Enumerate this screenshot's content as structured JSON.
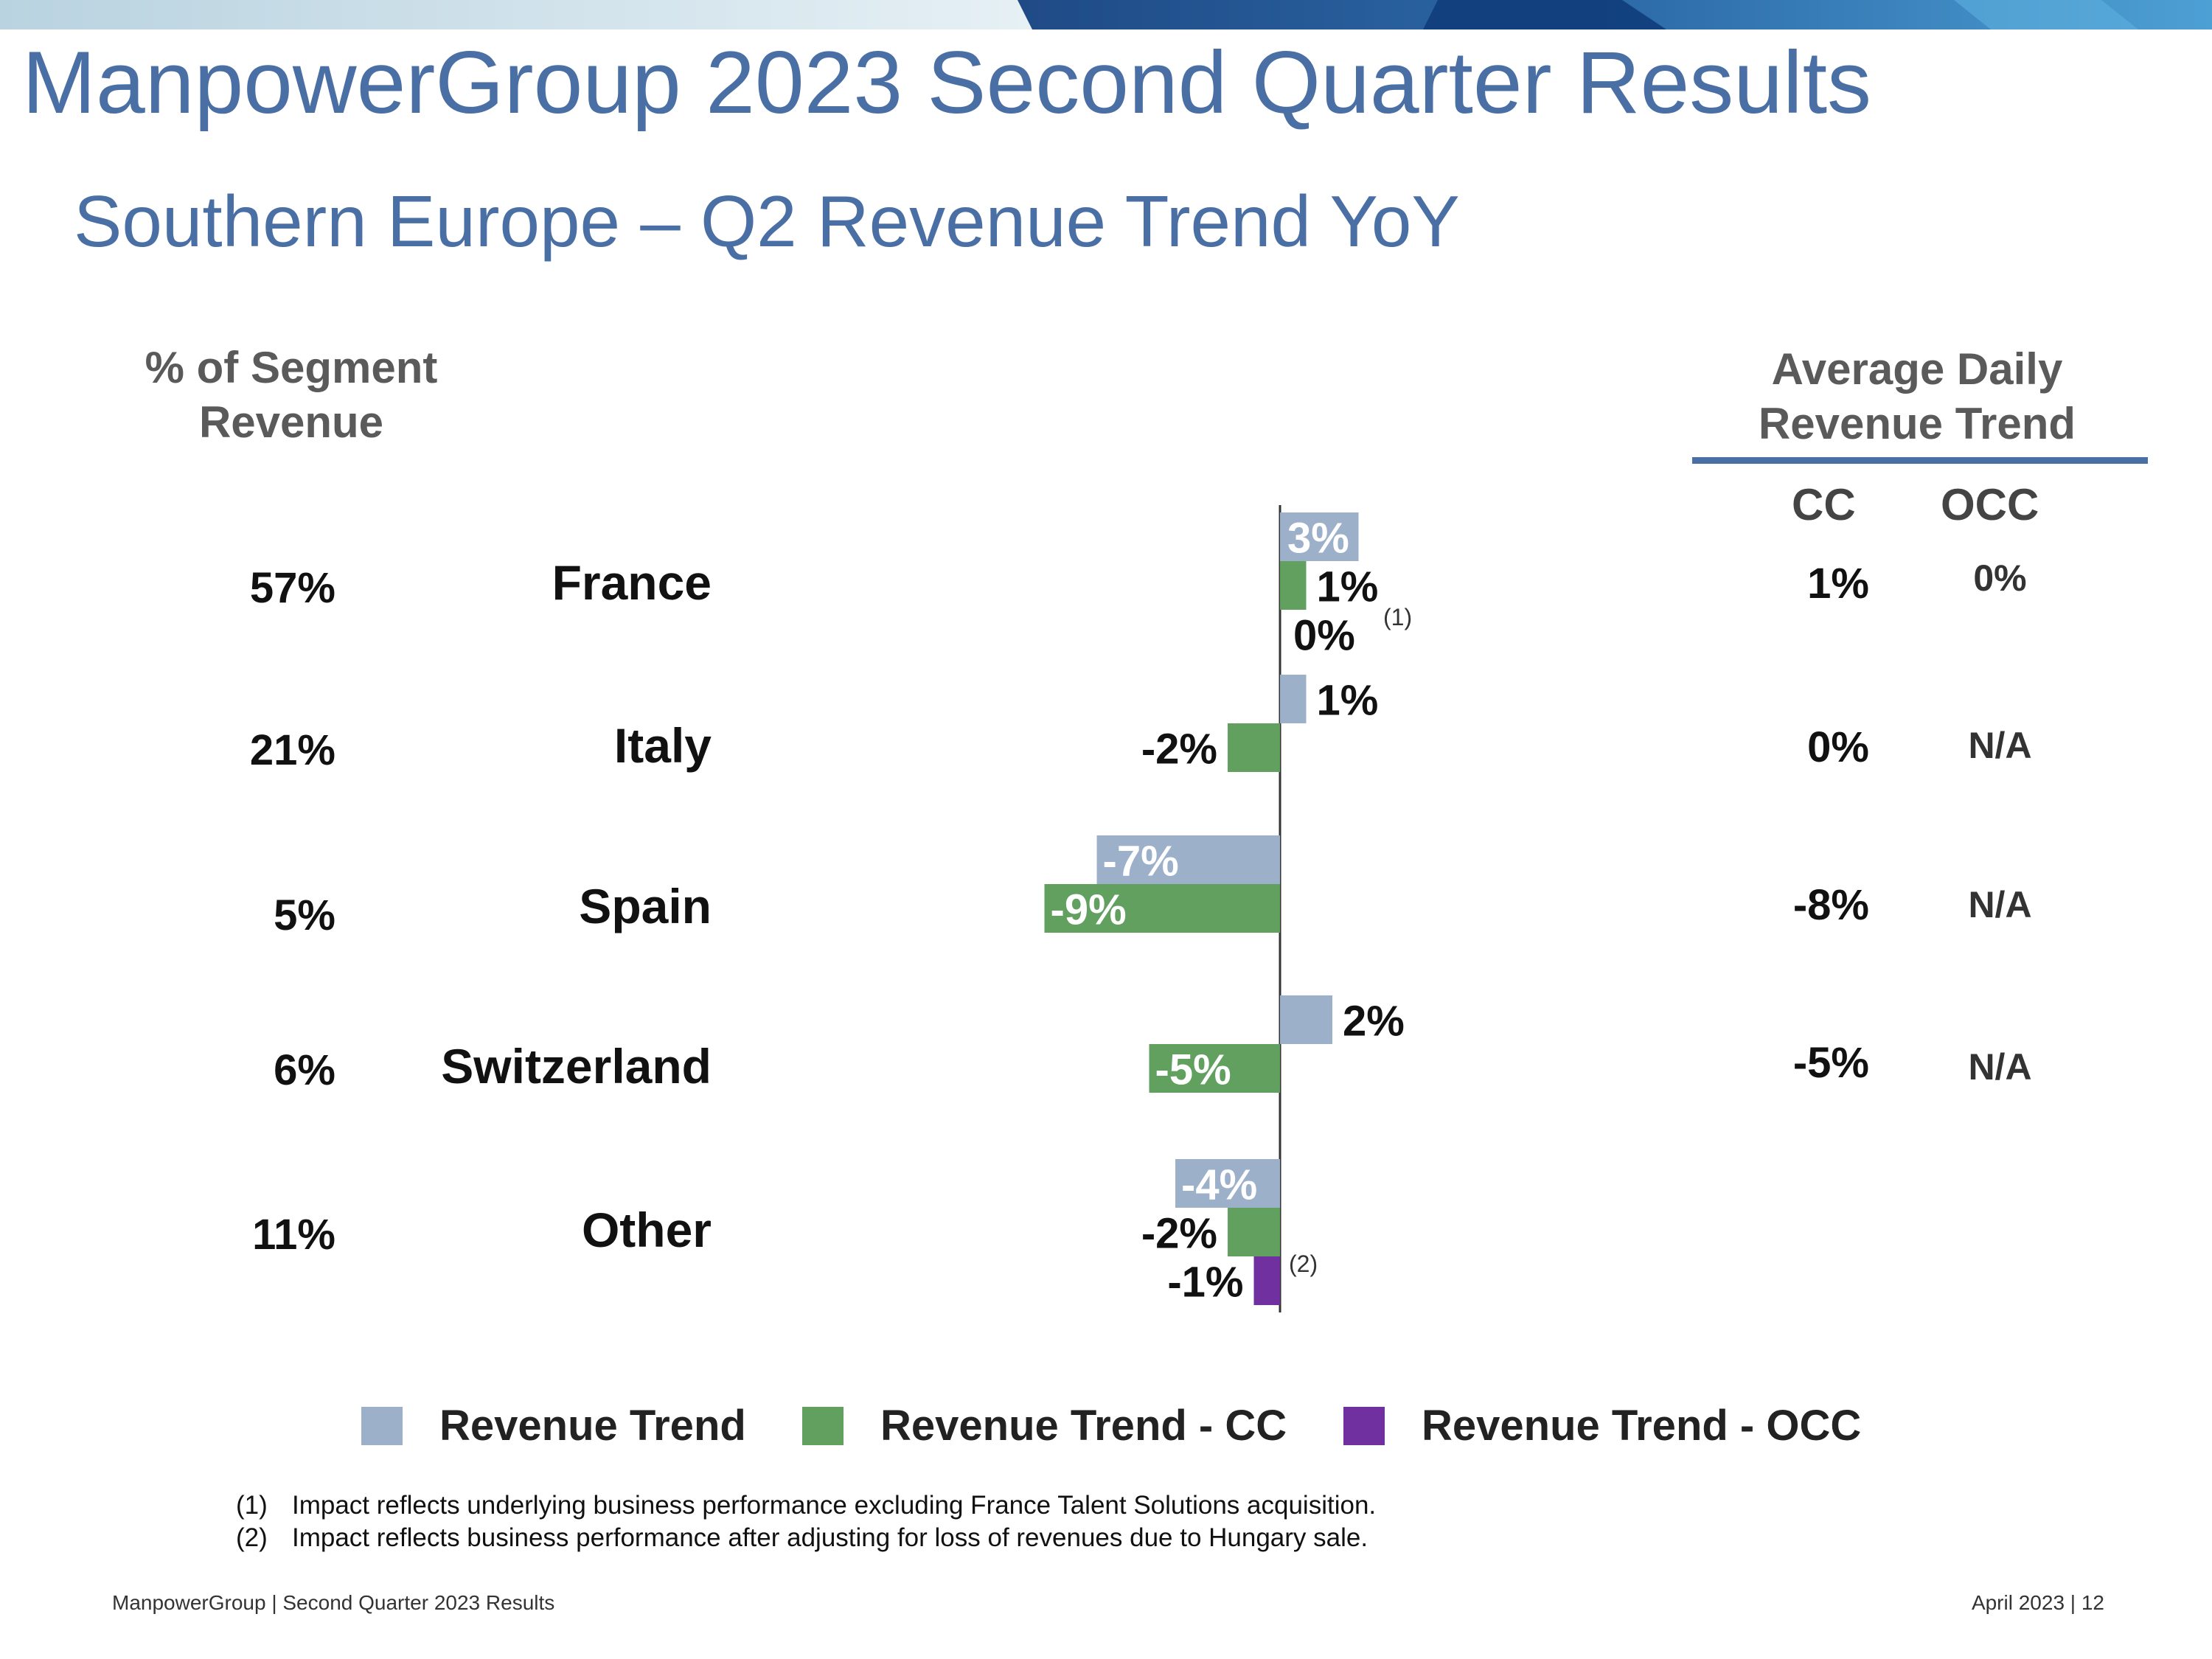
{
  "header": {
    "title": "ManpowerGroup 2023 Second Quarter Results",
    "subtitle": "Southern Europe – Q2 Revenue Trend YoY"
  },
  "segment_header": [
    "% of Segment",
    "Revenue"
  ],
  "adr_header": [
    "Average Daily",
    "Revenue Trend"
  ],
  "adr_columns": {
    "cc": "CC",
    "occ": "OCC"
  },
  "rows": [
    {
      "country": "France",
      "segment_pct": "57%",
      "adr_cc": "1%",
      "adr_occ": "0%"
    },
    {
      "country": "Italy",
      "segment_pct": "21%",
      "adr_cc": "0%",
      "adr_occ": "N/A"
    },
    {
      "country": "Spain",
      "segment_pct": "5%",
      "adr_cc": "-8%",
      "adr_occ": "N/A"
    },
    {
      "country": "Switzerland",
      "segment_pct": "6%",
      "adr_cc": "-5%",
      "adr_occ": "N/A"
    },
    {
      "country": "Other",
      "segment_pct": "11%",
      "adr_cc": "",
      "adr_occ": ""
    }
  ],
  "chart_data": {
    "type": "bar",
    "orientation": "horizontal",
    "categories": [
      "France",
      "Italy",
      "Spain",
      "Switzerland",
      "Other"
    ],
    "series": [
      {
        "name": "Revenue Trend",
        "color": "#9cb0ca",
        "values": [
          3,
          1,
          -7,
          2,
          -4
        ],
        "labels": [
          "3%",
          "1%",
          "-7%",
          "2%",
          "-4%"
        ]
      },
      {
        "name": "Revenue Trend - CC",
        "color": "#62a060",
        "values": [
          1,
          -2,
          -9,
          -5,
          -2
        ],
        "labels": [
          "1%",
          "-2%",
          "-9%",
          "-5%",
          "-2%"
        ]
      },
      {
        "name": "Revenue Trend - OCC",
        "color": "#7030a0",
        "values": [
          0,
          null,
          null,
          null,
          -1
        ],
        "labels": [
          "0%",
          null,
          null,
          null,
          "-1%"
        ]
      }
    ],
    "annotations": [
      {
        "category": "France",
        "series": "Revenue Trend - OCC",
        "text": "(1)"
      },
      {
        "category": "Other",
        "series": "Revenue Trend - OCC",
        "text": "(2)"
      }
    ],
    "xlim": [
      -10,
      5
    ],
    "title": "",
    "xlabel": "",
    "ylabel": ""
  },
  "footnotes": [
    {
      "num": "(1)",
      "text": "Impact reflects underlying business performance excluding France Talent Solutions acquisition."
    },
    {
      "num": "(2)",
      "text": "Impact reflects business performance after adjusting for loss of revenues due to Hungary sale."
    }
  ],
  "footer": {
    "left": "ManpowerGroup  |  Second Quarter 2023 Results",
    "right": "April 2023   |   12"
  },
  "colors": {
    "accent": "#4a6fa5",
    "revenue_trend": "#9cb0ca",
    "revenue_trend_cc": "#62a060",
    "revenue_trend_occ": "#7030a0"
  }
}
